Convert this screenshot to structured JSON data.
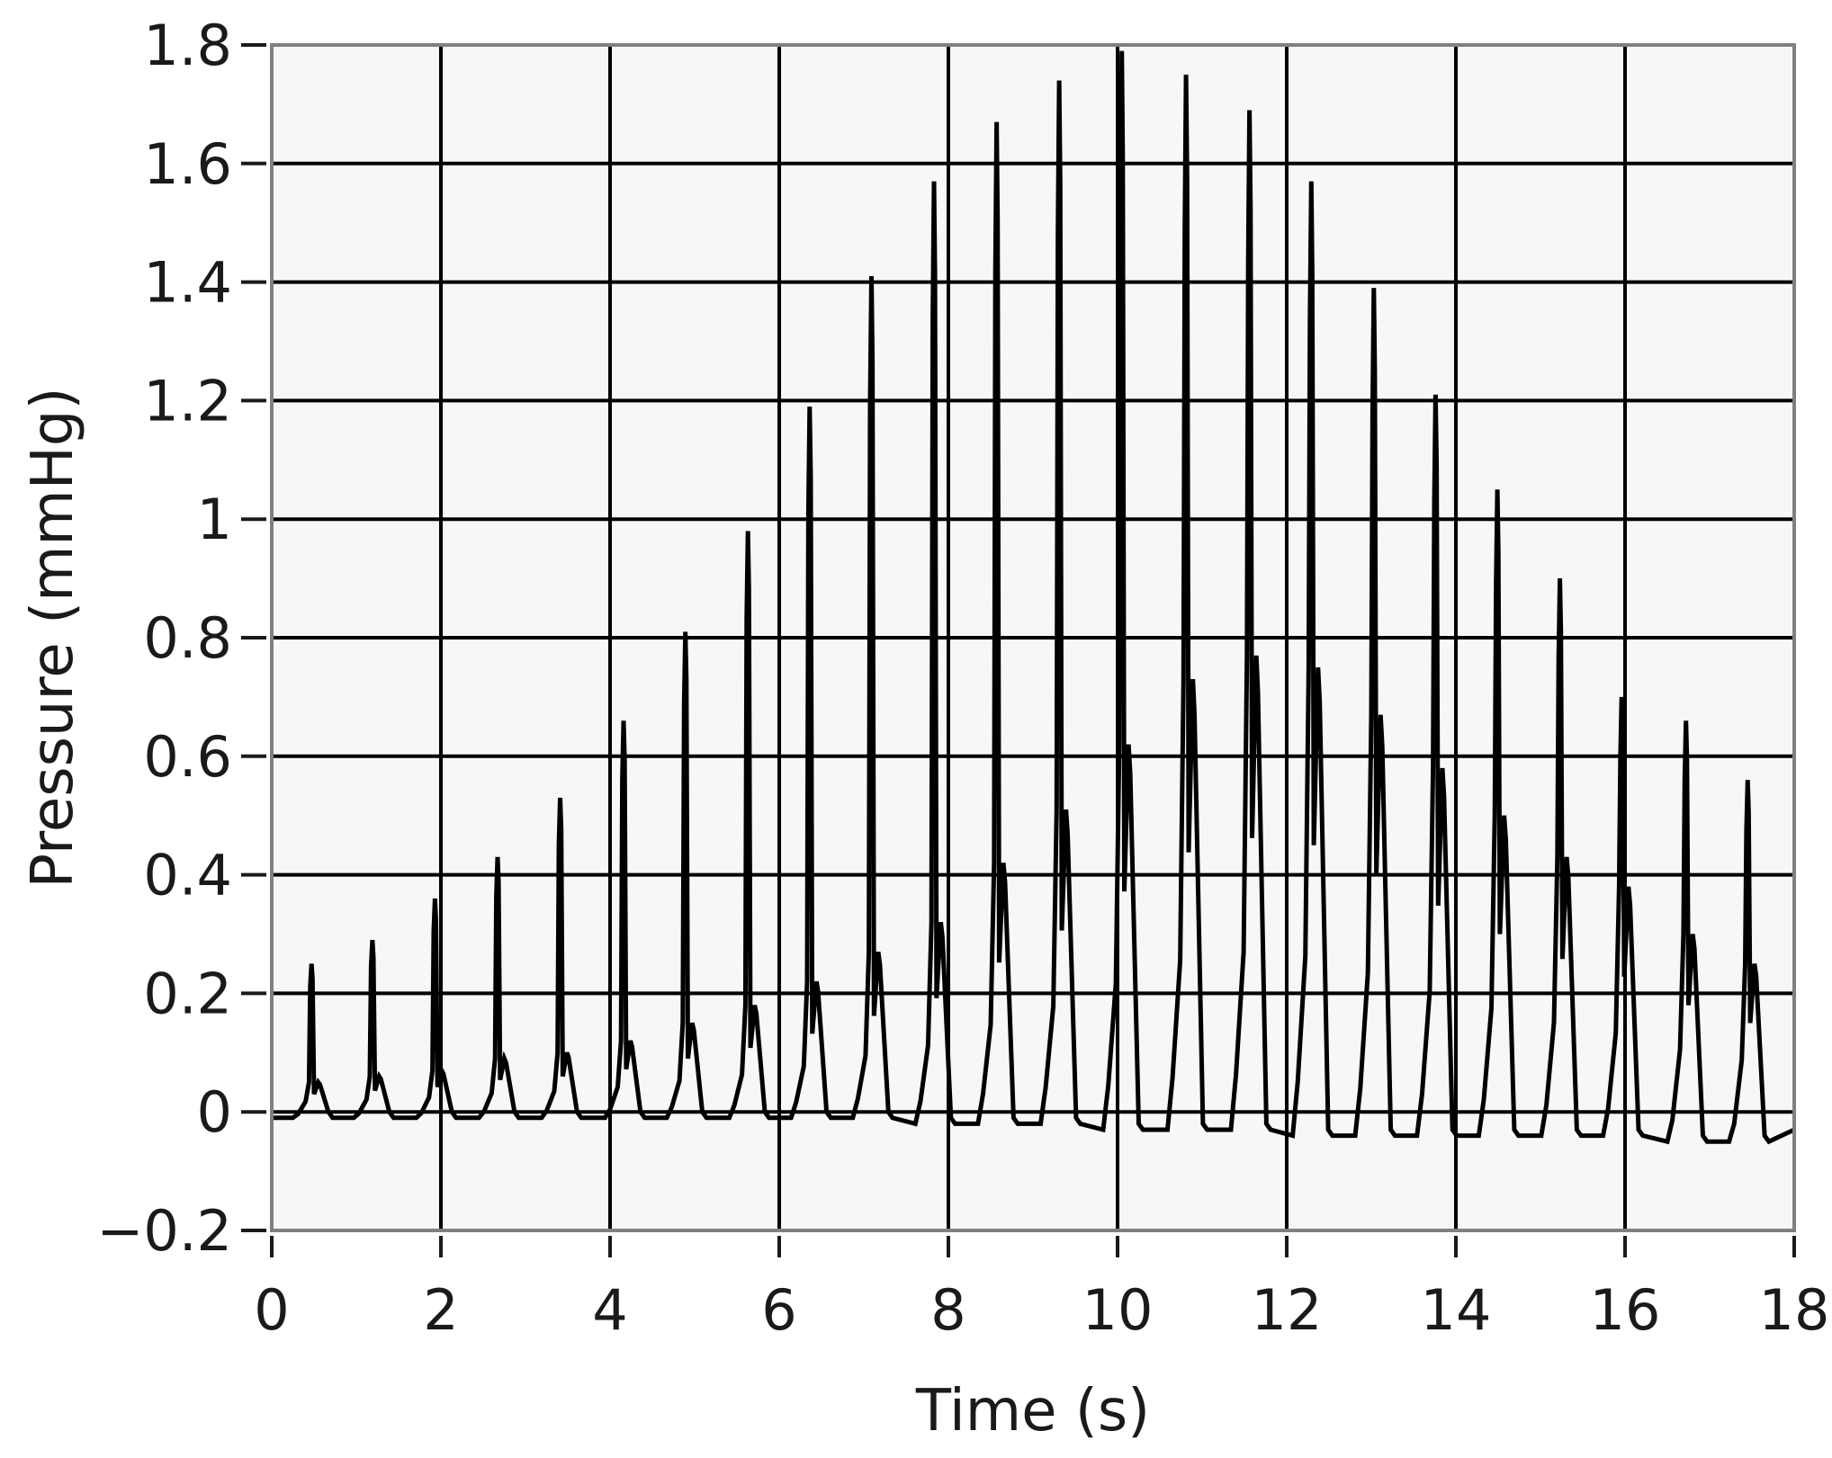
{
  "chart_data": {
    "type": "line",
    "title": "",
    "xlabel": "Time (s)",
    "ylabel": "Pressure (mmHg)",
    "xlim": [
      0,
      18
    ],
    "ylim": [
      -0.2,
      1.8
    ],
    "x_ticks": [
      0,
      2,
      4,
      6,
      8,
      10,
      12,
      14,
      16,
      18
    ],
    "y_ticks": [
      -0.2,
      0,
      0.2,
      0.4,
      0.6,
      0.8,
      1,
      1.2,
      1.4,
      1.6,
      1.8
    ],
    "x_tick_labels": [
      "0",
      "2",
      "4",
      "6",
      "8",
      "10",
      "12",
      "14",
      "16",
      "18"
    ],
    "y_tick_labels": [
      "−0.2",
      "0",
      "0.2",
      "0.4",
      "0.6",
      "0.8",
      "1",
      "1.2",
      "1.4",
      "1.6",
      "1.8"
    ],
    "grid": true,
    "colors": {
      "line": "#000000",
      "plot_bg": "#f7f7f7",
      "grid": "#000000",
      "frame": "#808080",
      "text": "#1a1a1a"
    },
    "series": [
      {
        "name": "",
        "pulses": [
          {
            "t": 0.47,
            "peak": 0.25,
            "notch": 0.05,
            "base": -0.01
          },
          {
            "t": 1.19,
            "peak": 0.29,
            "notch": 0.06,
            "base": -0.01
          },
          {
            "t": 1.93,
            "peak": 0.36,
            "notch": 0.07,
            "base": -0.01
          },
          {
            "t": 2.67,
            "peak": 0.43,
            "notch": 0.09,
            "base": -0.01
          },
          {
            "t": 3.41,
            "peak": 0.53,
            "notch": 0.1,
            "base": -0.01
          },
          {
            "t": 4.16,
            "peak": 0.66,
            "notch": 0.12,
            "base": -0.01
          },
          {
            "t": 4.89,
            "peak": 0.81,
            "notch": 0.15,
            "base": -0.01
          },
          {
            "t": 5.63,
            "peak": 0.98,
            "notch": 0.18,
            "base": -0.01
          },
          {
            "t": 6.36,
            "peak": 1.19,
            "notch": 0.22,
            "base": -0.01
          },
          {
            "t": 7.09,
            "peak": 1.41,
            "notch": 0.27,
            "base": -0.01
          },
          {
            "t": 7.83,
            "peak": 1.57,
            "notch": 0.32,
            "base": -0.02
          },
          {
            "t": 8.57,
            "peak": 1.67,
            "notch": 0.42,
            "base": -0.02
          },
          {
            "t": 9.31,
            "peak": 1.74,
            "notch": 0.51,
            "base": -0.02
          },
          {
            "t": 10.05,
            "peak": 1.79,
            "notch": 0.62,
            "base": -0.03
          },
          {
            "t": 10.81,
            "peak": 1.75,
            "notch": 0.73,
            "base": -0.03
          },
          {
            "t": 11.56,
            "peak": 1.69,
            "notch": 0.77,
            "base": -0.03
          },
          {
            "t": 12.29,
            "peak": 1.57,
            "notch": 0.75,
            "base": -0.04
          },
          {
            "t": 13.03,
            "peak": 1.39,
            "notch": 0.67,
            "base": -0.04
          },
          {
            "t": 13.76,
            "peak": 1.21,
            "notch": 0.58,
            "base": -0.04
          },
          {
            "t": 14.49,
            "peak": 1.05,
            "notch": 0.5,
            "base": -0.04
          },
          {
            "t": 15.23,
            "peak": 0.9,
            "notch": 0.43,
            "base": -0.04
          },
          {
            "t": 15.96,
            "peak": 0.7,
            "notch": 0.38,
            "base": -0.04
          },
          {
            "t": 16.72,
            "peak": 0.66,
            "notch": 0.3,
            "base": -0.05
          },
          {
            "t": 17.45,
            "peak": 0.56,
            "notch": 0.25,
            "base": -0.05
          }
        ]
      }
    ]
  }
}
